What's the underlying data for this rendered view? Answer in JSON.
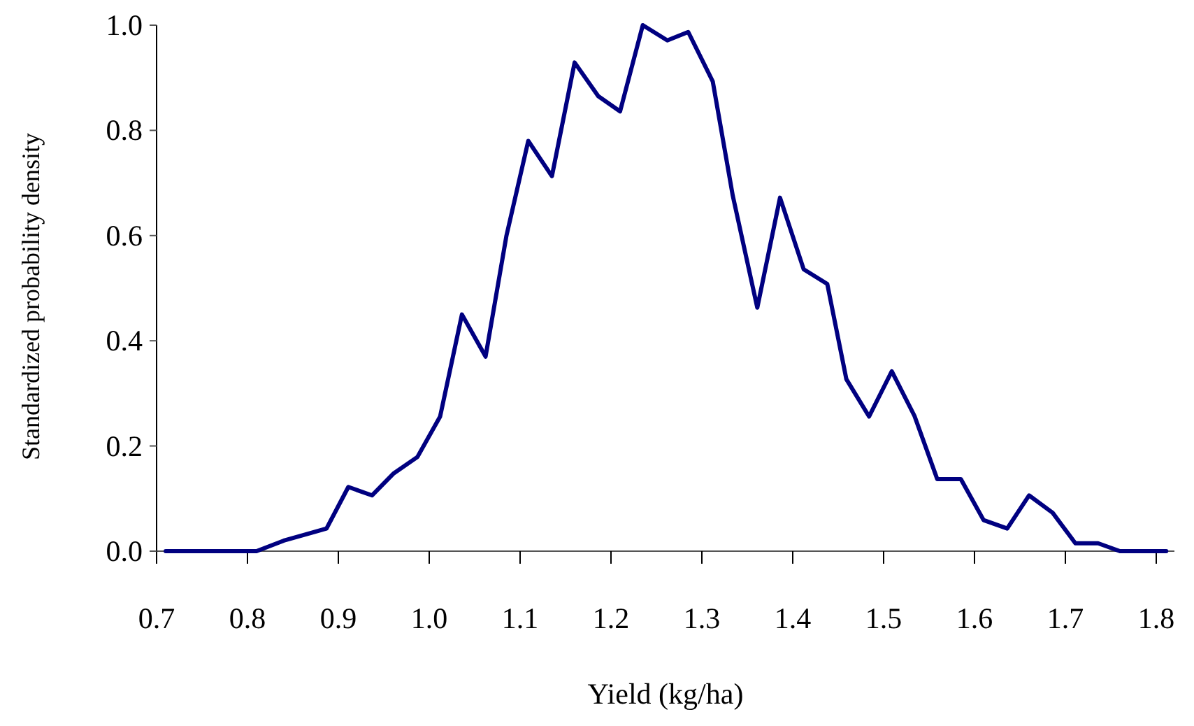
{
  "chart_data": {
    "type": "line",
    "xlabel": "Yield (kg/ha)",
    "ylabel": "Standardized probability density",
    "xlim": [
      0.7,
      1.82
    ],
    "xticks": [
      0.7,
      0.8,
      0.9,
      {
        "value": 1.0,
        "label": "1.0"
      },
      1.1,
      1.2,
      1.3,
      1.4,
      1.5,
      1.6,
      1.7,
      1.8
    ],
    "ylim": [
      0,
      1.0
    ],
    "yticks": [
      {
        "value": 0,
        "label": "0.0"
      },
      0.2,
      0.4,
      0.6,
      0.8,
      {
        "value": 1.0,
        "label": "1.0"
      }
    ],
    "grid": false,
    "marker": "none",
    "line_style": "solid",
    "series": [
      {
        "color": "#000080",
        "x": [
          0.71,
          0.81,
          0.84,
          0.887,
          0.911,
          0.937,
          0.961,
          0.987,
          1.012,
          1.036,
          1.062,
          1.085,
          1.109,
          1.135,
          1.16,
          1.186,
          1.21,
          1.235,
          1.262,
          1.285,
          1.312,
          1.334,
          1.361,
          1.386,
          1.412,
          1.438,
          1.459,
          1.484,
          1.509,
          1.534,
          1.559,
          1.585,
          1.61,
          1.636,
          1.66,
          1.686,
          1.711,
          1.736,
          1.76,
          1.811
        ],
        "values": [
          0,
          0,
          0.02,
          0.043,
          0.122,
          0.106,
          0.148,
          0.179,
          0.256,
          0.45,
          0.37,
          0.6,
          0.78,
          0.713,
          0.929,
          0.865,
          0.836,
          1.0,
          0.971,
          0.987,
          0.893,
          0.676,
          0.463,
          0.672,
          0.536,
          0.508,
          0.327,
          0.256,
          0.342,
          0.257,
          0.137,
          0.137,
          0.059,
          0.043,
          0.106,
          0.073,
          0.015,
          0.015,
          0,
          0
        ]
      }
    ]
  }
}
